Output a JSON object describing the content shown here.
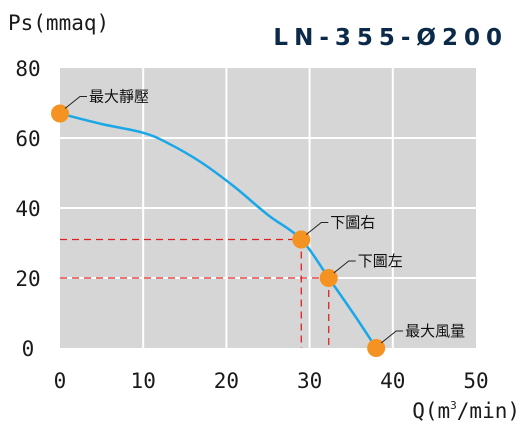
{
  "chart_data": {
    "type": "line",
    "title": "LN-355-Ø200",
    "ylabel": "Ps(mmaq)",
    "xlabel_main": "Q(m",
    "xlabel_sup": "3",
    "xlabel_rest": "/min)",
    "xlim": [
      0,
      50
    ],
    "ylim": [
      0,
      80
    ],
    "x_ticks": [
      0,
      10,
      20,
      30,
      40,
      50
    ],
    "y_ticks": [
      0,
      20,
      40,
      60,
      80
    ],
    "grid": true,
    "series": [
      {
        "x": [
          0,
          5,
          10,
          13,
          17,
          21,
          25,
          29,
          32.3,
          35.5,
          38
        ],
        "y": [
          67,
          64,
          61.5,
          58.5,
          53,
          46,
          38,
          31,
          20,
          9,
          0
        ]
      }
    ],
    "points": [
      {
        "label": "最大靜壓",
        "x": 0,
        "y": 67
      },
      {
        "label": "下圖右",
        "x": 29,
        "y": 31
      },
      {
        "label": "下圖左",
        "x": 32.3,
        "y": 20
      },
      {
        "label": "最大風量",
        "x": 38,
        "y": 0
      }
    ],
    "guide_points": [
      {
        "x": 29,
        "y": 31
      },
      {
        "x": 32.3,
        "y": 20
      }
    ],
    "colors": {
      "plot_background": "#d6d6d6",
      "grid": "#ffffff",
      "curve": "#1aa7e8",
      "marker": "#f59322",
      "guide": "#e02020",
      "title": "#0b2a4a"
    }
  }
}
